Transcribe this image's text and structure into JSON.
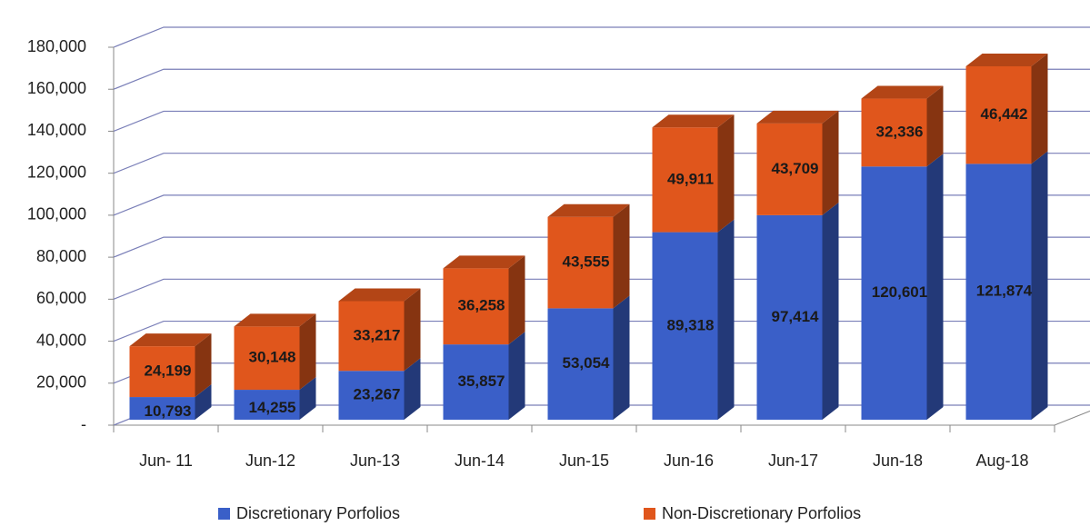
{
  "chart_data": {
    "type": "bar3d_stacked",
    "categories": [
      "Jun- 11",
      "Jun-12",
      "Jun-13",
      "Jun-14",
      "Jun-15",
      "Jun-16",
      "Jun-17",
      "Jun-18",
      "Aug-18"
    ],
    "series": [
      {
        "name": "Discretionary Porfolios",
        "color": "#3a5fc8",
        "values": [
          10793,
          14255,
          23267,
          35857,
          53054,
          89318,
          97414,
          120601,
          121874
        ],
        "value_labels": [
          "10,793",
          "14,255",
          "23,267",
          "35,857",
          "53,054",
          "89,318",
          "97,414",
          "120,601",
          "121,874"
        ]
      },
      {
        "name": "Non-Discretionary Porfolios",
        "color": "#e0561c",
        "values": [
          24199,
          30148,
          33217,
          36258,
          43555,
          49911,
          43709,
          32336,
          46442
        ],
        "value_labels": [
          "24,199",
          "30,148",
          "33,217",
          "36,258",
          "43,555",
          "49,911",
          "43,709",
          "32,336",
          "46,442"
        ]
      }
    ],
    "ylim": [
      0,
      180000
    ],
    "yticks": [
      {
        "value": 0,
        "label": "-"
      },
      {
        "value": 20000,
        "label": "20,000"
      },
      {
        "value": 40000,
        "label": "40,000"
      },
      {
        "value": 60000,
        "label": "60,000"
      },
      {
        "value": 80000,
        "label": "80,000"
      },
      {
        "value": 100000,
        "label": "100,000"
      },
      {
        "value": 120000,
        "label": "120,000"
      },
      {
        "value": 140000,
        "label": "140,000"
      },
      {
        "value": 160000,
        "label": "160,000"
      },
      {
        "value": 180000,
        "label": "180,000"
      }
    ],
    "grid": true,
    "legend": "bottom"
  }
}
